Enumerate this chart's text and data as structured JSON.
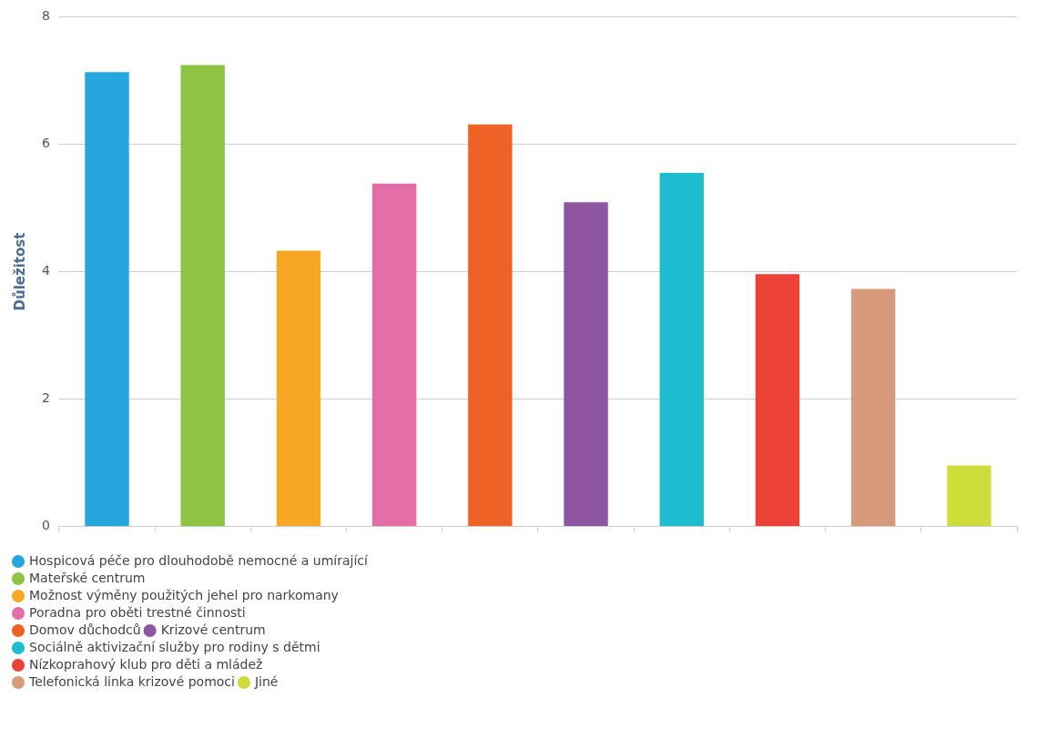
{
  "chart_data": {
    "type": "bar",
    "ylabel": "Důležitost",
    "categories": [
      null,
      null,
      null,
      null,
      null,
      null,
      null,
      null,
      null,
      null
    ],
    "series": [
      {
        "name": "Hospicová péče pro dlouhodobě nemocné a umírající",
        "color": "#25a7de",
        "values": [
          7.13,
          null,
          null,
          null,
          null,
          null,
          null,
          null,
          null,
          null
        ]
      },
      {
        "name": "Mateřské centrum",
        "color": "#8cc444",
        "values": [
          null,
          7.24,
          null,
          null,
          null,
          null,
          null,
          null,
          null,
          null
        ]
      },
      {
        "name": "Možnost výměny použitých jehel pro narkomany",
        "color": "#f8a724",
        "values": [
          null,
          null,
          4.33,
          null,
          null,
          null,
          null,
          null,
          null,
          null
        ]
      },
      {
        "name": "Poradna pro oběti trestné činnosti",
        "color": "#e56ea9",
        "values": [
          null,
          null,
          null,
          5.38,
          null,
          null,
          null,
          null,
          null,
          null
        ]
      },
      {
        "name": "Domov důchodců",
        "color": "#ee6225",
        "values": [
          null,
          null,
          null,
          null,
          6.31,
          null,
          null,
          null,
          null,
          null
        ]
      },
      {
        "name": "Krizové centrum",
        "color": "#8e55a1",
        "values": [
          null,
          null,
          null,
          null,
          null,
          5.09,
          null,
          null,
          null,
          null
        ]
      },
      {
        "name": "Sociálně aktivizační služby pro rodiny s dětmi",
        "color": "#1dbccf",
        "values": [
          null,
          null,
          null,
          null,
          null,
          null,
          5.55,
          null,
          null,
          null
        ]
      },
      {
        "name": "Nízkoprahový klub pro děti a mládež",
        "color": "#ec4136",
        "values": [
          null,
          null,
          null,
          null,
          null,
          null,
          null,
          3.96,
          null,
          null
        ]
      },
      {
        "name": "Telefonická linka krizové pomoci",
        "color": "#d69a7b",
        "values": [
          null,
          null,
          null,
          null,
          null,
          null,
          null,
          null,
          3.73,
          null
        ]
      },
      {
        "name": "Jiné",
        "color": "#cddc39",
        "values": [
          null,
          null,
          null,
          null,
          null,
          null,
          null,
          null,
          null,
          0.96
        ]
      }
    ],
    "ylim": [
      0,
      8
    ],
    "yticks": [
      0,
      2,
      4,
      6,
      8
    ],
    "grid": "y",
    "legend": "bottom left"
  }
}
